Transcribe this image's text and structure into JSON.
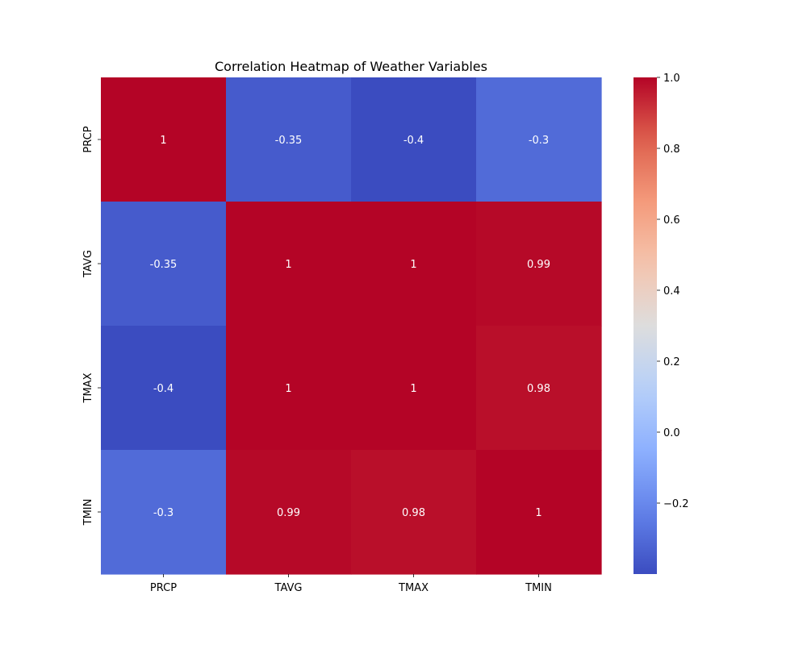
{
  "chart_data": {
    "type": "heatmap",
    "title": "Correlation Heatmap of Weather Variables",
    "xlabel": "",
    "ylabel": "",
    "x_categories": [
      "PRCP",
      "TAVG",
      "TMAX",
      "TMIN"
    ],
    "y_categories": [
      "PRCP",
      "TAVG",
      "TMAX",
      "TMIN"
    ],
    "values": [
      [
        1.0,
        -0.35,
        -0.4,
        -0.3
      ],
      [
        -0.35,
        1.0,
        1.0,
        0.99
      ],
      [
        -0.4,
        1.0,
        1.0,
        0.98
      ],
      [
        -0.3,
        0.99,
        0.98,
        1.0
      ]
    ],
    "annotations": [
      [
        "1",
        "-0.35",
        "-0.4",
        "-0.3"
      ],
      [
        "-0.35",
        "1",
        "1",
        "0.99"
      ],
      [
        "-0.4",
        "1",
        "1",
        "0.98"
      ],
      [
        "-0.3",
        "0.99",
        "0.98",
        "1"
      ]
    ],
    "colormap": "coolwarm",
    "vmin": -0.4,
    "vmax": 1.0,
    "colorbar": {
      "ticks": [
        -0.2,
        0.0,
        0.2,
        0.4,
        0.6,
        0.8,
        1.0
      ],
      "tick_labels": [
        "−0.2",
        "0.0",
        "0.2",
        "0.4",
        "0.6",
        "0.8",
        "1.0"
      ],
      "placement": "right"
    },
    "grid": false
  }
}
